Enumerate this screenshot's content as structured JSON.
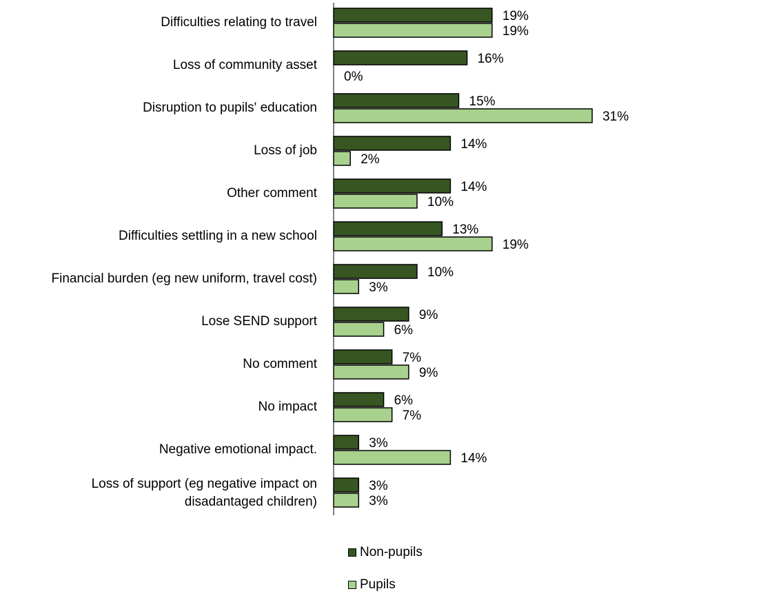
{
  "chart_data": {
    "type": "bar",
    "orientation": "horizontal",
    "categories": [
      "Difficulties relating to travel",
      "Loss of community asset",
      "Disruption to pupils' education",
      "Loss of job",
      "Other comment",
      "Difficulties settling in a new school",
      "Financial burden (eg new uniform, travel cost)",
      "Lose SEND support",
      "No comment",
      "No impact",
      "Negative emotional impact.",
      "Loss of support (eg negative impact on disadantaged children)"
    ],
    "series": [
      {
        "name": "Non-pupils",
        "color": "#375623",
        "values": [
          19,
          16,
          15,
          14,
          14,
          13,
          10,
          9,
          7,
          6,
          3,
          3
        ],
        "labels": [
          "19%",
          "16%",
          "15%",
          "14%",
          "14%",
          "13%",
          "10%",
          "9%",
          "7%",
          "6%",
          "3%",
          "3%"
        ]
      },
      {
        "name": "Pupils",
        "color": "#a9d18e",
        "values": [
          19,
          0,
          31,
          2,
          10,
          19,
          3,
          6,
          9,
          7,
          14,
          3
        ],
        "labels": [
          "19%",
          "0%",
          "31%",
          "2%",
          "10%",
          "19%",
          "3%",
          "6%",
          "9%",
          "7%",
          "14%",
          "3%"
        ]
      }
    ],
    "xlim": [
      0,
      31
    ],
    "grid": false,
    "legend_position": "bottom"
  }
}
